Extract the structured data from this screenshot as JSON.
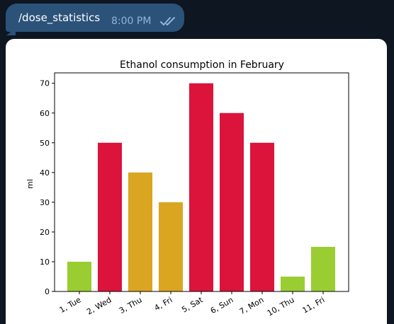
{
  "message": {
    "text": "/dose_statistics",
    "time": "8:00 PM",
    "status_icon": "double-check-icon"
  },
  "colors": {
    "background": "#0e1621",
    "bubble": "#2b5278",
    "time": "#8fb5d9",
    "red": "#dc143c",
    "orange": "#daa520",
    "green": "#9acd32"
  },
  "chart_data": {
    "type": "bar",
    "title": "Ethanol consumption in February",
    "xlabel": "",
    "ylabel": "ml",
    "ylim": [
      0,
      73.5
    ],
    "yticks": [
      0,
      10,
      20,
      30,
      40,
      50,
      60,
      70
    ],
    "grid": false,
    "categories": [
      "1, Tue",
      "2, Wed",
      "3, Thu",
      "4, Fri",
      "5, Sat",
      "6, Sun",
      "7, Mon",
      "10, Thu",
      "11, Fri"
    ],
    "values": [
      10,
      50,
      40,
      30,
      70,
      60,
      50,
      5,
      15
    ],
    "bar_colors": [
      "#9acd32",
      "#dc143c",
      "#daa520",
      "#daa520",
      "#dc143c",
      "#dc143c",
      "#dc143c",
      "#9acd32",
      "#9acd32"
    ]
  }
}
